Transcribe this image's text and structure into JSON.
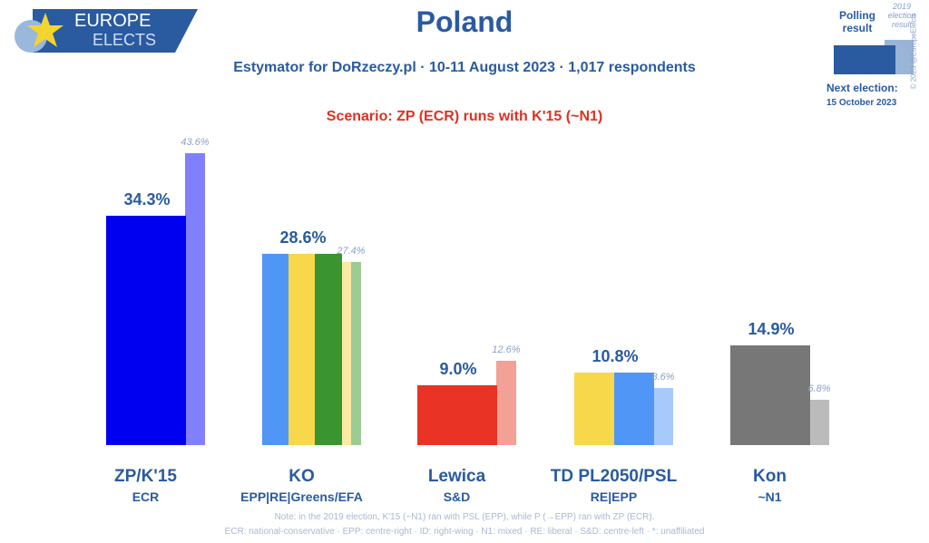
{
  "logo": {
    "line1": "EUROPE",
    "line2": "ELECTS"
  },
  "header": {
    "title": "Poland",
    "subtitle": "Estymator for DoRzeczy.pl · 10-11 August 2023 · 1,017 respondents",
    "scenario": "Scenario: ZP (ECR) runs with K'15 (~N1)"
  },
  "legend": {
    "polling": "Polling result",
    "previous": "2019 election result",
    "next_label": "Next election:",
    "next_date": "15 October 2023",
    "copyright": "© 2023 @EuropeElects"
  },
  "chart_data": {
    "type": "bar",
    "title": "Poland",
    "ylim": [
      0,
      45
    ],
    "categories": [
      "ZP/K'15",
      "KO",
      "Lewica",
      "TD PL2050/PSL",
      "Kon"
    ],
    "groups": [
      "ECR",
      "EPP|RE|Greens/EFA",
      "S&D",
      "RE|EPP",
      "~N1"
    ],
    "series": [
      {
        "name": "Polling result",
        "values": [
          34.3,
          28.6,
          9.0,
          10.8,
          14.9
        ],
        "labels": [
          "34.3%",
          "28.6%",
          "9.0%",
          "10.8%",
          "14.9%"
        ]
      },
      {
        "name": "2019 election result",
        "values": [
          43.6,
          27.4,
          12.6,
          8.6,
          6.8
        ],
        "labels": [
          "43.6%",
          "27.4%",
          "12.6%",
          "8.6%",
          "6.8%"
        ]
      }
    ],
    "colors": [
      [
        "#0000f0"
      ],
      [
        "#4f96f7",
        "#f7d84a",
        "#3a9430"
      ],
      [
        "#e83325"
      ],
      [
        "#f7d84a",
        "#4f96f7"
      ],
      [
        "#777777"
      ]
    ],
    "prev_colors": [
      [
        "#8080ff"
      ],
      [
        "#fbeaa3",
        "#9ccb94"
      ],
      [
        "#f3a096"
      ],
      [
        "#a8cafb"
      ],
      [
        "#bbbbbb"
      ]
    ]
  },
  "notes": [
    "Note: in the 2019 election, K'15 (~N1) ran with PSL (EPP), while P (→EPP) ran with ZP (ECR).",
    "ECR: national-conservative · EPP: centre-right · ID: right-wing · N1: mixed · RE: liberal · S&D: centre-left · *: unaffiliated"
  ]
}
